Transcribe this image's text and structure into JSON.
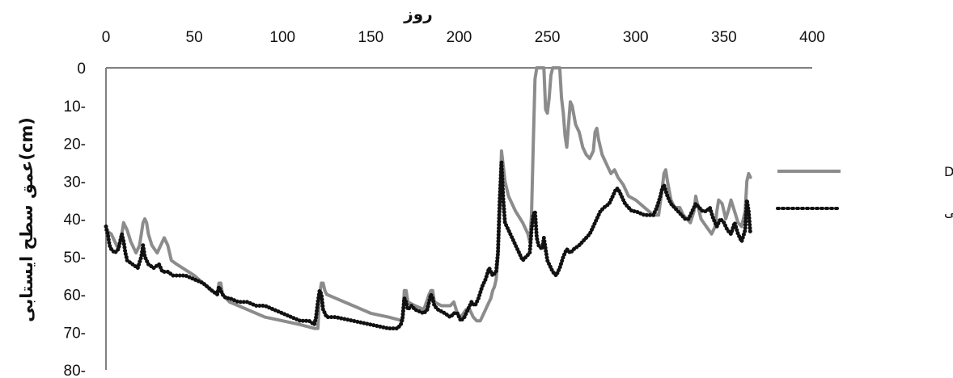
{
  "chart_data": {
    "type": "line",
    "title": "",
    "xlabel": "روز",
    "ylabel": "عمق سطح ایستابی(cm)",
    "xlim": [
      0,
      400
    ],
    "ylim": [
      0,
      80
    ],
    "y_inverted": true,
    "x_ticks": [
      0,
      50,
      100,
      150,
      200,
      250,
      300,
      350,
      400
    ],
    "y_ticks": [
      0,
      10,
      20,
      30,
      40,
      50,
      60,
      70,
      80
    ],
    "y_tick_labels": [
      "0",
      "10-",
      "20-",
      "30-",
      "40-",
      "50-",
      "60-",
      "70-",
      "80-"
    ],
    "x_axis_position": "top",
    "grid": false,
    "legend_position": "right",
    "series": [
      {
        "name": "مدل Drainmod",
        "style": "solid",
        "color": "#8c8c8c",
        "points": [
          [
            0,
            43
          ],
          [
            3,
            44
          ],
          [
            5,
            46
          ],
          [
            7,
            48
          ],
          [
            9,
            44
          ],
          [
            10,
            41
          ],
          [
            12,
            43
          ],
          [
            14,
            46
          ],
          [
            17,
            49
          ],
          [
            19,
            47
          ],
          [
            20,
            44
          ],
          [
            21,
            41
          ],
          [
            22,
            40
          ],
          [
            23,
            41
          ],
          [
            24,
            44
          ],
          [
            26,
            47
          ],
          [
            29,
            49
          ],
          [
            31,
            47
          ],
          [
            33,
            45
          ],
          [
            35,
            47
          ],
          [
            37,
            51
          ],
          [
            40,
            52
          ],
          [
            50,
            55
          ],
          [
            60,
            59
          ],
          [
            63,
            60
          ],
          [
            64,
            57
          ],
          [
            65,
            57
          ],
          [
            66,
            60
          ],
          [
            70,
            62
          ],
          [
            80,
            64
          ],
          [
            90,
            66
          ],
          [
            100,
            67
          ],
          [
            110,
            68
          ],
          [
            118,
            69
          ],
          [
            120,
            69
          ],
          [
            121,
            60
          ],
          [
            122,
            57
          ],
          [
            123,
            57
          ],
          [
            124,
            59
          ],
          [
            125,
            60
          ],
          [
            130,
            61
          ],
          [
            140,
            63
          ],
          [
            150,
            65
          ],
          [
            160,
            66
          ],
          [
            168,
            67
          ],
          [
            169,
            59
          ],
          [
            170,
            59
          ],
          [
            171,
            62
          ],
          [
            175,
            63
          ],
          [
            180,
            64
          ],
          [
            183,
            60
          ],
          [
            184,
            59
          ],
          [
            185,
            59
          ],
          [
            186,
            62
          ],
          [
            190,
            63
          ],
          [
            195,
            63
          ],
          [
            197,
            62
          ],
          [
            199,
            65
          ],
          [
            201,
            66
          ],
          [
            204,
            64
          ],
          [
            206,
            64
          ],
          [
            208,
            66
          ],
          [
            210,
            67
          ],
          [
            212,
            67
          ],
          [
            214,
            65
          ],
          [
            216,
            63
          ],
          [
            218,
            61
          ],
          [
            219,
            59
          ],
          [
            220,
            58
          ],
          [
            221,
            56
          ],
          [
            222,
            50
          ],
          [
            223,
            38
          ],
          [
            224,
            22
          ],
          [
            225,
            26
          ],
          [
            226,
            30
          ],
          [
            228,
            34
          ],
          [
            232,
            38
          ],
          [
            236,
            41
          ],
          [
            239,
            44
          ],
          [
            240,
            46
          ],
          [
            241,
            39
          ],
          [
            242,
            20
          ],
          [
            243,
            3
          ],
          [
            244,
            0
          ],
          [
            248,
            0
          ],
          [
            249,
            11
          ],
          [
            250,
            12
          ],
          [
            251,
            8
          ],
          [
            252,
            2
          ],
          [
            253,
            0
          ],
          [
            256,
            0
          ],
          [
            257,
            0
          ],
          [
            258,
            8
          ],
          [
            259,
            12
          ],
          [
            260,
            18
          ],
          [
            261,
            21
          ],
          [
            262,
            15
          ],
          [
            263,
            9
          ],
          [
            264,
            10
          ],
          [
            266,
            15
          ],
          [
            268,
            17
          ],
          [
            270,
            21
          ],
          [
            272,
            23
          ],
          [
            274,
            24
          ],
          [
            276,
            22
          ],
          [
            277,
            17
          ],
          [
            278,
            16
          ],
          [
            279,
            19
          ],
          [
            281,
            23
          ],
          [
            284,
            26
          ],
          [
            286,
            28
          ],
          [
            288,
            27
          ],
          [
            290,
            29
          ],
          [
            293,
            31
          ],
          [
            296,
            34
          ],
          [
            300,
            35
          ],
          [
            305,
            37
          ],
          [
            310,
            39
          ],
          [
            313,
            39
          ],
          [
            315,
            32
          ],
          [
            316,
            28
          ],
          [
            317,
            27
          ],
          [
            318,
            30
          ],
          [
            320,
            35
          ],
          [
            322,
            37
          ],
          [
            325,
            37
          ],
          [
            327,
            39
          ],
          [
            329,
            40
          ],
          [
            331,
            41
          ],
          [
            333,
            38
          ],
          [
            334,
            34
          ],
          [
            335,
            36
          ],
          [
            337,
            40
          ],
          [
            340,
            42
          ],
          [
            343,
            44
          ],
          [
            345,
            42
          ],
          [
            346,
            38
          ],
          [
            347,
            35
          ],
          [
            349,
            36
          ],
          [
            351,
            40
          ],
          [
            353,
            37
          ],
          [
            354,
            35
          ],
          [
            356,
            38
          ],
          [
            358,
            41
          ],
          [
            360,
            42
          ],
          [
            362,
            38
          ],
          [
            363,
            30
          ],
          [
            364,
            28
          ],
          [
            365,
            29
          ]
        ]
      },
      {
        "name": "مدل سری زمانی",
        "style": "dotted",
        "color": "#111111",
        "points": [
          [
            0,
            42
          ],
          [
            1,
            44
          ],
          [
            2,
            47
          ],
          [
            3,
            48
          ],
          [
            5,
            49
          ],
          [
            7,
            48
          ],
          [
            8,
            46
          ],
          [
            9,
            44
          ],
          [
            10,
            46
          ],
          [
            11,
            49
          ],
          [
            12,
            51
          ],
          [
            15,
            52
          ],
          [
            18,
            53
          ],
          [
            20,
            50
          ],
          [
            21,
            47
          ],
          [
            22,
            50
          ],
          [
            24,
            52
          ],
          [
            27,
            53
          ],
          [
            30,
            52
          ],
          [
            32,
            54
          ],
          [
            35,
            54
          ],
          [
            38,
            55
          ],
          [
            42,
            55
          ],
          [
            45,
            55
          ],
          [
            50,
            56
          ],
          [
            55,
            57
          ],
          [
            60,
            59
          ],
          [
            63,
            60
          ],
          [
            64,
            58
          ],
          [
            65,
            59
          ],
          [
            66,
            60
          ],
          [
            68,
            61
          ],
          [
            70,
            61
          ],
          [
            75,
            62
          ],
          [
            80,
            62
          ],
          [
            85,
            63
          ],
          [
            88,
            63
          ],
          [
            90,
            63
          ],
          [
            95,
            64
          ],
          [
            100,
            65
          ],
          [
            105,
            66
          ],
          [
            110,
            67
          ],
          [
            115,
            67
          ],
          [
            118,
            68
          ],
          [
            119,
            66
          ],
          [
            120,
            62
          ],
          [
            121,
            59
          ],
          [
            122,
            60
          ],
          [
            123,
            64
          ],
          [
            125,
            66
          ],
          [
            130,
            66
          ],
          [
            140,
            67
          ],
          [
            150,
            68
          ],
          [
            160,
            69
          ],
          [
            165,
            69
          ],
          [
            167,
            68
          ],
          [
            168,
            66
          ],
          [
            169,
            61
          ],
          [
            170,
            62
          ],
          [
            171,
            64
          ],
          [
            173,
            63
          ],
          [
            175,
            64
          ],
          [
            180,
            65
          ],
          [
            182,
            64
          ],
          [
            183,
            62
          ],
          [
            184,
            60
          ],
          [
            185,
            61
          ],
          [
            186,
            63
          ],
          [
            188,
            64
          ],
          [
            192,
            65
          ],
          [
            195,
            66
          ],
          [
            197,
            65
          ],
          [
            199,
            65
          ],
          [
            201,
            67
          ],
          [
            203,
            66
          ],
          [
            205,
            64
          ],
          [
            207,
            62
          ],
          [
            209,
            63
          ],
          [
            211,
            61
          ],
          [
            213,
            58
          ],
          [
            215,
            56
          ],
          [
            217,
            53
          ],
          [
            219,
            55
          ],
          [
            221,
            54
          ],
          [
            222,
            49
          ],
          [
            223,
            35
          ],
          [
            224,
            25
          ],
          [
            225,
            35
          ],
          [
            226,
            41
          ],
          [
            228,
            43
          ],
          [
            230,
            45
          ],
          [
            233,
            48
          ],
          [
            236,
            51
          ],
          [
            238,
            50
          ],
          [
            240,
            49
          ],
          [
            241,
            43
          ],
          [
            242,
            39
          ],
          [
            243,
            38
          ],
          [
            244,
            45
          ],
          [
            245,
            47
          ],
          [
            247,
            48
          ],
          [
            248,
            45
          ],
          [
            249,
            48
          ],
          [
            250,
            51
          ],
          [
            251,
            52
          ],
          [
            253,
            54
          ],
          [
            255,
            55
          ],
          [
            257,
            53
          ],
          [
            259,
            50
          ],
          [
            261,
            48
          ],
          [
            263,
            49
          ],
          [
            265,
            48
          ],
          [
            268,
            47
          ],
          [
            270,
            46
          ],
          [
            272,
            45
          ],
          [
            274,
            44
          ],
          [
            276,
            42
          ],
          [
            278,
            40
          ],
          [
            280,
            38
          ],
          [
            282,
            37
          ],
          [
            285,
            36
          ],
          [
            287,
            34
          ],
          [
            289,
            32
          ],
          [
            290,
            32
          ],
          [
            292,
            34
          ],
          [
            294,
            36
          ],
          [
            296,
            37
          ],
          [
            298,
            38
          ],
          [
            300,
            38
          ],
          [
            305,
            39
          ],
          [
            308,
            39
          ],
          [
            310,
            39
          ],
          [
            312,
            37
          ],
          [
            314,
            34
          ],
          [
            315,
            32
          ],
          [
            316,
            31
          ],
          [
            318,
            34
          ],
          [
            320,
            36
          ],
          [
            322,
            37
          ],
          [
            324,
            38
          ],
          [
            326,
            39
          ],
          [
            328,
            40
          ],
          [
            330,
            40
          ],
          [
            332,
            38
          ],
          [
            334,
            36
          ],
          [
            336,
            37
          ],
          [
            338,
            38
          ],
          [
            340,
            38
          ],
          [
            342,
            37
          ],
          [
            344,
            40
          ],
          [
            346,
            42
          ],
          [
            348,
            40
          ],
          [
            350,
            41
          ],
          [
            352,
            43
          ],
          [
            354,
            44
          ],
          [
            356,
            41
          ],
          [
            358,
            44
          ],
          [
            360,
            46
          ],
          [
            362,
            43
          ],
          [
            363,
            35
          ],
          [
            364,
            38
          ],
          [
            365,
            44
          ]
        ]
      }
    ]
  }
}
